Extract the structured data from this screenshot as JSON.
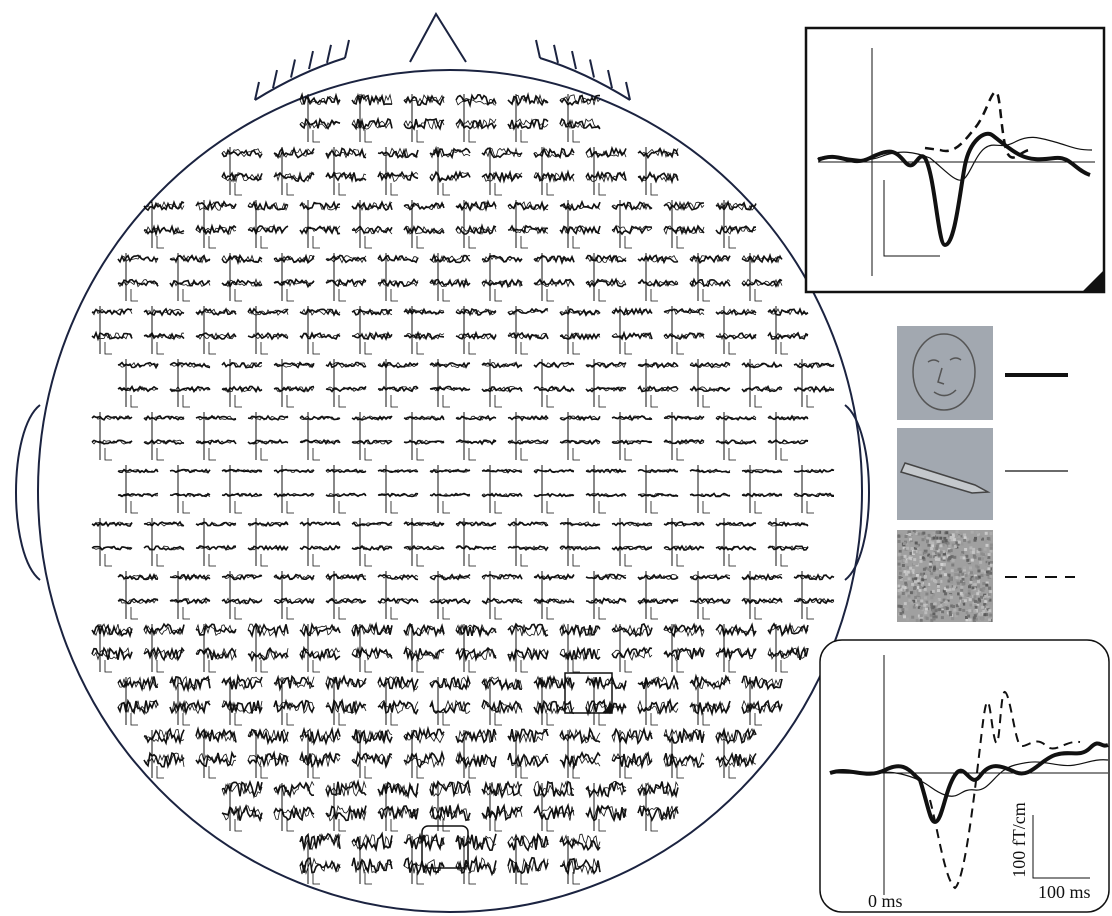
{
  "inset_bottom": {
    "time_zero_label": "0 ms",
    "scale_y_label": "100 fT/cm",
    "scale_x_label": "100 ms"
  }
}
